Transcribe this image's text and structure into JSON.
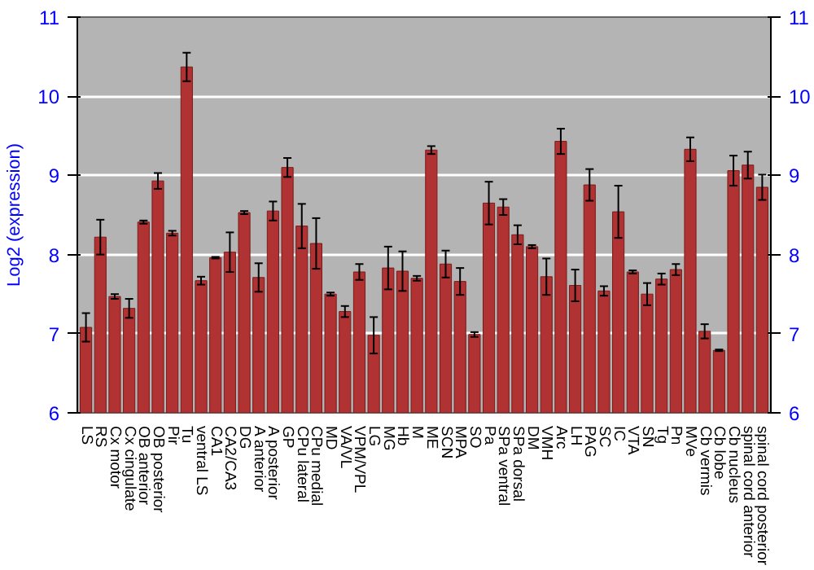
{
  "chart_data": {
    "type": "bar",
    "ylabel": "Log2 (expression)",
    "categories": [
      "LS",
      "RS",
      "Cx motor",
      "Cx cingulate",
      "OB anterior",
      "OB posterior",
      "Pir",
      "Tu",
      "ventral LS",
      "CA1",
      "CA2/CA3",
      "DG",
      "A anterior",
      "A posterior",
      "GP",
      "CPu lateral",
      "CPu medial",
      "MD",
      "VA/VL",
      "VPM/VPL",
      "LG",
      "MG",
      "Hb",
      "M",
      "ME",
      "SCN",
      "MPA",
      "SO",
      "Pa",
      "SPa ventral",
      "SPa dorsal",
      "DM",
      "VMH",
      "Arc",
      "LH",
      "PAG",
      "SC",
      "IC",
      "VTA",
      "SN",
      "Tg",
      "Pn",
      "MVe",
      "Cb vermis",
      "Cb lobe",
      "Cb nucleus",
      "spinal cord anterior",
      "spinal cord posterior"
    ],
    "values": [
      7.08,
      8.22,
      7.47,
      7.32,
      8.41,
      8.93,
      8.27,
      10.37,
      7.67,
      7.96,
      8.03,
      8.53,
      7.71,
      8.55,
      9.1,
      8.36,
      8.14,
      7.5,
      7.28,
      7.78,
      6.98,
      7.83,
      7.79,
      7.7,
      9.32,
      7.88,
      7.66,
      6.99,
      8.65,
      8.6,
      8.25,
      8.1,
      7.72,
      9.43,
      7.61,
      8.88,
      7.54,
      8.54,
      7.78,
      7.5,
      7.69,
      7.81,
      9.33,
      7.03,
      6.79,
      9.06,
      9.13,
      8.85
    ],
    "errors": [
      0.18,
      0.22,
      0.03,
      0.12,
      0.02,
      0.1,
      0.03,
      0.18,
      0.05,
      0.01,
      0.25,
      0.02,
      0.18,
      0.12,
      0.12,
      0.28,
      0.32,
      0.02,
      0.07,
      0.1,
      0.23,
      0.27,
      0.25,
      0.03,
      0.05,
      0.17,
      0.17,
      0.03,
      0.27,
      0.1,
      0.12,
      0.02,
      0.23,
      0.16,
      0.2,
      0.2,
      0.06,
      0.33,
      0.02,
      0.14,
      0.07,
      0.07,
      0.15,
      0.09,
      0.01,
      0.19,
      0.17,
      0.16
    ],
    "color": "#b03232",
    "ylim": [
      6,
      11
    ],
    "yticks": [
      6,
      7,
      8,
      9,
      10,
      11
    ],
    "y2lim": [
      6,
      11
    ],
    "y2ticks": [
      6,
      7,
      8,
      9,
      10,
      11
    ],
    "grid": "y"
  }
}
